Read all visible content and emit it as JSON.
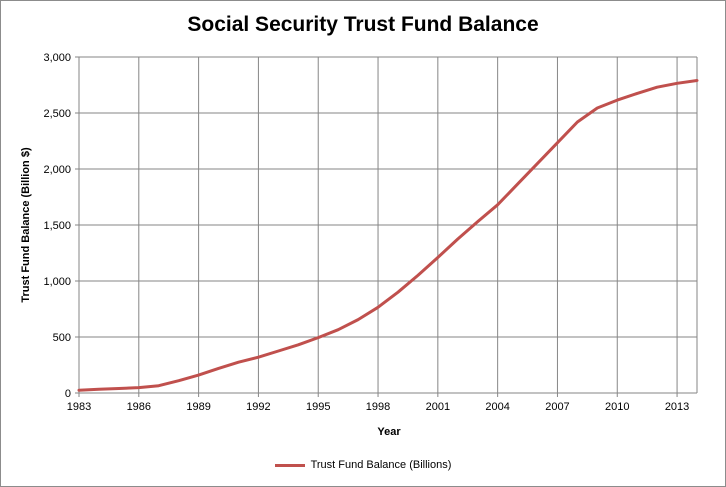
{
  "colors": {
    "line": "#c0504d",
    "grid": "#868686",
    "axis": "#868686"
  },
  "chart_data": {
    "type": "line",
    "title": "Social Security Trust Fund Balance",
    "xlabel": "Year",
    "ylabel": "Trust Fund Balance  (Billion $)",
    "xlim": [
      1983,
      2014
    ],
    "ylim": [
      0,
      3000
    ],
    "xticks": [
      1983,
      1986,
      1989,
      1992,
      1995,
      1998,
      2001,
      2004,
      2007,
      2010,
      2013
    ],
    "yticks": [
      0,
      500,
      1000,
      1500,
      2000,
      2500,
      3000
    ],
    "ytick_labels": [
      "0",
      "500",
      "1,000",
      "1,500",
      "2,000",
      "2,500",
      "3,000"
    ],
    "grid": true,
    "legend_position": "bottom",
    "series": [
      {
        "name": "Trust Fund Balance (Billions)",
        "x": [
          1983,
          1984,
          1985,
          1986,
          1987,
          1988,
          1989,
          1990,
          1991,
          1992,
          1993,
          1994,
          1995,
          1996,
          1997,
          1998,
          1999,
          2000,
          2001,
          2002,
          2003,
          2004,
          2005,
          2006,
          2007,
          2008,
          2009,
          2010,
          2011,
          2012,
          2013,
          2014
        ],
        "y": [
          25,
          33,
          40,
          48,
          65,
          110,
          160,
          220,
          275,
          320,
          375,
          430,
          495,
          565,
          655,
          765,
          900,
          1050,
          1210,
          1375,
          1530,
          1680,
          1865,
          2050,
          2235,
          2420,
          2545,
          2615,
          2675,
          2730,
          2765,
          2790
        ]
      }
    ]
  }
}
